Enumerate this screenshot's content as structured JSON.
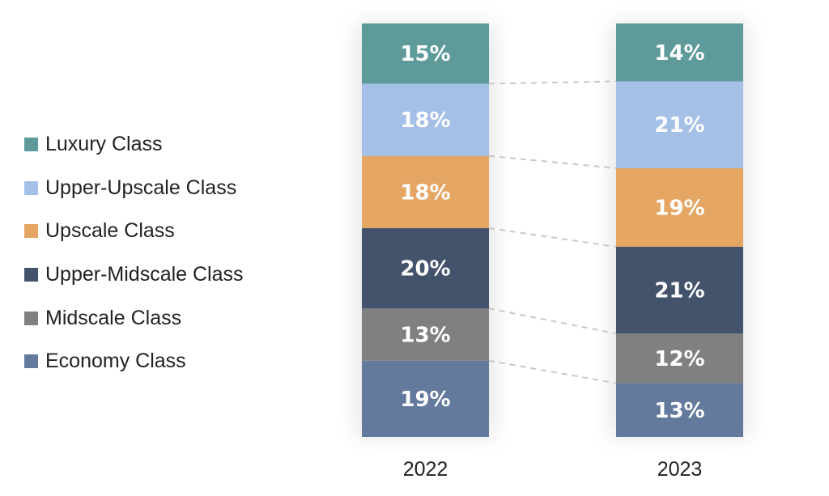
{
  "chart_data": {
    "type": "bar",
    "stacked": true,
    "normalized_percent": true,
    "categories": [
      "2022",
      "2023"
    ],
    "series": [
      {
        "name": "Economy Class",
        "color": "#637a9c",
        "values": [
          19,
          13
        ]
      },
      {
        "name": "Midscale Class",
        "color": "#808080",
        "values": [
          13,
          12
        ]
      },
      {
        "name": "Upper-Midscale Class",
        "color": "#43536c",
        "values": [
          20,
          21
        ]
      },
      {
        "name": "Upscale Class",
        "color": "#e5a664",
        "values": [
          18,
          19
        ]
      },
      {
        "name": "Upper-Upscale Class",
        "color": "#a4c0e6",
        "values": [
          18,
          21
        ]
      },
      {
        "name": "Luxury Class",
        "color": "#5f9a9a",
        "values": [
          15,
          14
        ]
      }
    ],
    "labels": [
      [
        "19%",
        "13%"
      ],
      [
        "13%",
        "12%"
      ],
      [
        "20%",
        "21%"
      ],
      [
        "18%",
        "19%"
      ],
      [
        "18%",
        "21%"
      ],
      [
        "15%",
        "14%"
      ]
    ],
    "legend": [
      "Luxury Class",
      "Upper-Upscale Class",
      "Upscale Class",
      "Upper-Midscale Class",
      "Midscale Class",
      "Economy Class"
    ],
    "legend_position": "left",
    "connector_lines": "dashed",
    "title": "",
    "xlabel": "",
    "ylabel": "",
    "grid": false
  }
}
